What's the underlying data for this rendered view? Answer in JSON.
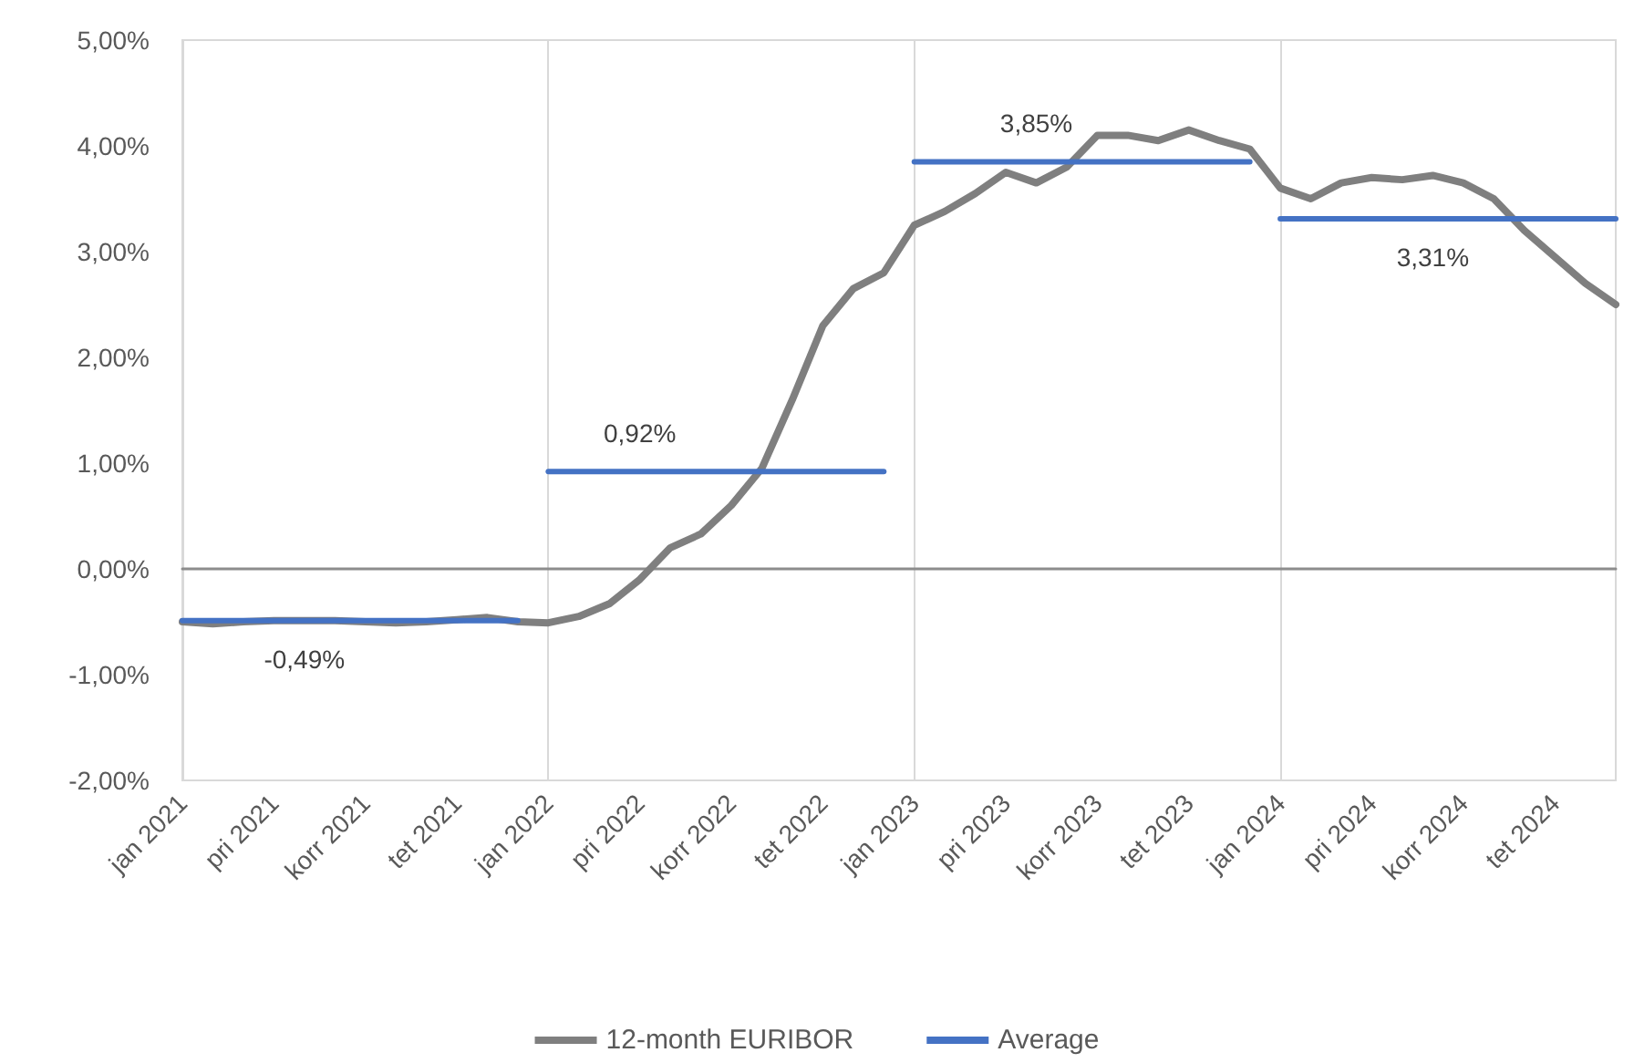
{
  "chart_data": {
    "type": "line",
    "categories": [
      "jan 2021",
      null,
      null,
      "pri 2021",
      null,
      null,
      "korr 2021",
      null,
      null,
      "tet 2021",
      null,
      null,
      "jan 2022",
      null,
      null,
      "pri 2022",
      null,
      null,
      "korr 2022",
      null,
      null,
      "tet 2022",
      null,
      null,
      "jan 2023",
      null,
      null,
      "pri 2023",
      null,
      null,
      "korr 2023",
      null,
      null,
      "tet 2023",
      null,
      null,
      "jan 2024",
      null,
      null,
      "pri 2024",
      null,
      null,
      "korr 2024",
      null,
      null,
      "tet 2024",
      null,
      null
    ],
    "series": [
      {
        "name": "12-month EURIBOR",
        "color": "#7f7f7f",
        "values": [
          -0.5,
          -0.52,
          -0.5,
          -0.49,
          -0.49,
          -0.49,
          -0.5,
          -0.51,
          -0.5,
          -0.48,
          -0.46,
          -0.5,
          -0.51,
          -0.45,
          -0.33,
          -0.1,
          0.2,
          0.33,
          0.6,
          0.95,
          1.6,
          2.3,
          2.65,
          2.8,
          3.25,
          3.38,
          3.55,
          3.75,
          3.65,
          3.8,
          4.1,
          4.1,
          4.05,
          4.15,
          4.05,
          3.97,
          3.6,
          3.5,
          3.65,
          3.7,
          3.68,
          3.72,
          3.65,
          3.5,
          3.2,
          2.95,
          2.7,
          2.5
        ]
      },
      {
        "name": "Average",
        "color": "#4472c4",
        "values": [
          -0.49,
          -0.49,
          -0.49,
          -0.49,
          -0.49,
          -0.49,
          -0.49,
          -0.49,
          -0.49,
          -0.49,
          -0.49,
          -0.49,
          null,
          null,
          null,
          null,
          null,
          null,
          null,
          null,
          null,
          null,
          null,
          null,
          null,
          null,
          null,
          null,
          null,
          null,
          null,
          null,
          null,
          null,
          null,
          null,
          null,
          null,
          null,
          null,
          null,
          null,
          null,
          null,
          null,
          null,
          null,
          null
        ],
        "value_labels": [
          null,
          null,
          null,
          null,
          "-0,49%",
          null,
          null,
          null,
          null,
          null,
          null,
          null,
          null,
          null,
          null,
          null,
          null,
          null,
          null,
          null,
          null,
          null,
          null,
          null,
          null,
          null,
          null,
          null,
          null,
          null,
          null,
          null,
          null,
          null,
          null,
          null,
          null,
          null,
          null,
          null,
          null,
          null,
          null,
          null,
          null,
          null,
          null,
          null
        ]
      },
      {
        "color": "#4472c4",
        "values": [
          null,
          null,
          null,
          null,
          null,
          null,
          null,
          null,
          null,
          null,
          null,
          null,
          0.92,
          0.92,
          0.92,
          0.92,
          0.92,
          0.92,
          0.92,
          0.92,
          0.92,
          0.92,
          0.92,
          0.92,
          null,
          null,
          null,
          null,
          null,
          null,
          null,
          null,
          null,
          null,
          null,
          null,
          null,
          null,
          null,
          null,
          null,
          null,
          null,
          null,
          null,
          null,
          null,
          null
        ],
        "value_labels": [
          null,
          null,
          null,
          null,
          null,
          null,
          null,
          null,
          null,
          null,
          null,
          null,
          null,
          null,
          null,
          "0,92%",
          null,
          null,
          null,
          null,
          null,
          null,
          null,
          null,
          null,
          null,
          null,
          null,
          null,
          null,
          null,
          null,
          null,
          null,
          null,
          null,
          null,
          null,
          null,
          null,
          null,
          null,
          null,
          null,
          null,
          null,
          null,
          null
        ]
      },
      {
        "color": "#4472c4",
        "values": [
          null,
          null,
          null,
          null,
          null,
          null,
          null,
          null,
          null,
          null,
          null,
          null,
          null,
          null,
          null,
          null,
          null,
          null,
          null,
          null,
          null,
          null,
          null,
          null,
          3.85,
          3.85,
          3.85,
          3.85,
          3.85,
          3.85,
          3.85,
          3.85,
          3.85,
          3.85,
          3.85,
          3.85,
          null,
          null,
          null,
          null,
          null,
          null,
          null,
          null,
          null,
          null,
          null,
          null
        ],
        "value_labels": [
          null,
          null,
          null,
          null,
          null,
          null,
          null,
          null,
          null,
          null,
          null,
          null,
          null,
          null,
          null,
          null,
          null,
          null,
          null,
          null,
          null,
          null,
          null,
          null,
          null,
          null,
          null,
          null,
          "3,85%",
          null,
          null,
          null,
          null,
          null,
          null,
          null,
          null,
          null,
          null,
          null,
          null,
          null,
          null,
          null,
          null,
          null,
          null,
          null
        ]
      },
      {
        "color": "#4472c4",
        "values": [
          null,
          null,
          null,
          null,
          null,
          null,
          null,
          null,
          null,
          null,
          null,
          null,
          null,
          null,
          null,
          null,
          null,
          null,
          null,
          null,
          null,
          null,
          null,
          null,
          null,
          null,
          null,
          null,
          null,
          null,
          null,
          null,
          null,
          null,
          null,
          null,
          3.31,
          3.31,
          3.31,
          3.31,
          3.31,
          3.31,
          3.31,
          3.31,
          3.31,
          3.31,
          3.31,
          3.31
        ],
        "value_labels": [
          null,
          null,
          null,
          null,
          null,
          null,
          null,
          null,
          null,
          null,
          null,
          null,
          null,
          null,
          null,
          null,
          null,
          null,
          null,
          null,
          null,
          null,
          null,
          null,
          null,
          null,
          null,
          null,
          null,
          null,
          null,
          null,
          null,
          null,
          null,
          null,
          null,
          null,
          null,
          null,
          null,
          "3,31%",
          null,
          null,
          null,
          null,
          null,
          null
        ]
      }
    ],
    "ylim": [
      -2,
      5
    ],
    "yticks": [
      {
        "value": -2,
        "label": "-2,00%"
      },
      {
        "value": -1,
        "label": "-1,00%"
      },
      {
        "value": 0,
        "label": "0,00%"
      },
      {
        "value": 1,
        "label": "1,00%"
      },
      {
        "value": 2,
        "label": "2,00%"
      },
      {
        "value": 3,
        "label": "3,00%"
      },
      {
        "value": 4,
        "label": "4,00%"
      },
      {
        "value": 5,
        "label": "5,00%"
      }
    ],
    "grid": "x",
    "legend": "bottom",
    "marker": "none",
    "line_style": "solid"
  }
}
